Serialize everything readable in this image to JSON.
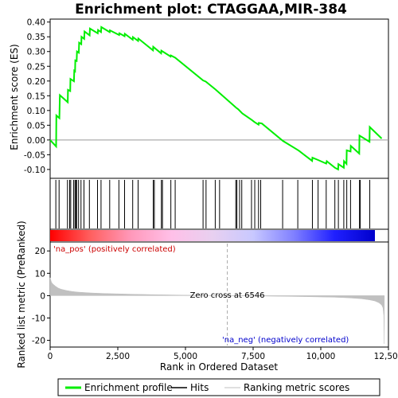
{
  "chart_data": {
    "type": "line",
    "title": "Enrichment plot: CTAGGAA,MIR-384",
    "x_axis": {
      "label": "Rank in Ordered Dataset",
      "range": [
        0,
        12500
      ],
      "ticks": [
        0,
        2500,
        5000,
        7500,
        10000,
        12500
      ],
      "tick_labels": [
        "0",
        "2,500",
        "5,000",
        "7,500",
        "10,000",
        "12,500"
      ]
    },
    "es_panel": {
      "ylabel": "Enrichment score (ES)",
      "ylim": [
        -0.13,
        0.41
      ],
      "ticks": [
        -0.1,
        -0.05,
        0.0,
        0.05,
        0.1,
        0.15,
        0.2,
        0.25,
        0.3,
        0.35,
        0.4
      ],
      "tick_labels": [
        "-0.10",
        "-0.05",
        "0.00",
        "0.05",
        "0.10",
        "0.15",
        "0.20",
        "0.25",
        "0.30",
        "0.35",
        "0.40"
      ],
      "series": [
        {
          "name": "Enrichment profile",
          "color": "#00ee00",
          "points": [
            [
              0,
              0.0
            ],
            [
              220,
              -0.022
            ],
            [
              230,
              0.083
            ],
            [
              340,
              0.074
            ],
            [
              360,
              0.152
            ],
            [
              650,
              0.128
            ],
            [
              660,
              0.17
            ],
            [
              740,
              0.166
            ],
            [
              750,
              0.207
            ],
            [
              880,
              0.199
            ],
            [
              890,
              0.235
            ],
            [
              920,
              0.233
            ],
            [
              930,
              0.27
            ],
            [
              980,
              0.268
            ],
            [
              990,
              0.3
            ],
            [
              1060,
              0.296
            ],
            [
              1070,
              0.33
            ],
            [
              1150,
              0.325
            ],
            [
              1160,
              0.35
            ],
            [
              1260,
              0.343
            ],
            [
              1270,
              0.368
            ],
            [
              1460,
              0.355
            ],
            [
              1470,
              0.378
            ],
            [
              1760,
              0.362
            ],
            [
              1770,
              0.373
            ],
            [
              1880,
              0.366
            ],
            [
              1890,
              0.383
            ],
            [
              2200,
              0.366
            ],
            [
              2210,
              0.372
            ],
            [
              2550,
              0.356
            ],
            [
              2560,
              0.362
            ],
            [
              2750,
              0.352
            ],
            [
              2760,
              0.36
            ],
            [
              3050,
              0.34
            ],
            [
              3060,
              0.349
            ],
            [
              3250,
              0.336
            ],
            [
              3260,
              0.344
            ],
            [
              3800,
              0.304
            ],
            [
              3810,
              0.316
            ],
            [
              4100,
              0.294
            ],
            [
              4110,
              0.303
            ],
            [
              4450,
              0.283
            ],
            [
              4460,
              0.287
            ],
            [
              4620,
              0.279
            ],
            [
              5650,
              0.202
            ],
            [
              5750,
              0.198
            ],
            [
              6100,
              0.172
            ],
            [
              6250,
              0.16
            ],
            [
              6880,
              0.109
            ],
            [
              6950,
              0.104
            ],
            [
              7100,
              0.09
            ],
            [
              7450,
              0.068
            ],
            [
              7550,
              0.061
            ],
            [
              7700,
              0.052
            ],
            [
              7710,
              0.058
            ],
            [
              7820,
              0.056
            ],
            [
              8600,
              -0.003
            ],
            [
              9150,
              -0.034
            ],
            [
              9200,
              -0.037
            ],
            [
              9680,
              -0.071
            ],
            [
              9690,
              -0.06
            ],
            [
              9900,
              -0.068
            ],
            [
              10200,
              -0.08
            ],
            [
              10220,
              -0.072
            ],
            [
              10520,
              -0.094
            ],
            [
              10640,
              -0.1
            ],
            [
              10650,
              -0.082
            ],
            [
              10850,
              -0.094
            ],
            [
              10860,
              -0.072
            ],
            [
              10950,
              -0.081
            ],
            [
              10960,
              -0.035
            ],
            [
              11100,
              -0.039
            ],
            [
              11110,
              -0.02
            ],
            [
              11420,
              -0.046
            ],
            [
              11430,
              0.015
            ],
            [
              11800,
              -0.006
            ],
            [
              11810,
              0.044
            ],
            [
              12250,
              0.005
            ]
          ]
        }
      ]
    },
    "hits": [
      210,
      330,
      640,
      720,
      760,
      870,
      920,
      950,
      980,
      1050,
      1140,
      1250,
      1450,
      1750,
      1880,
      2200,
      2540,
      2750,
      3050,
      3250,
      3810,
      3850,
      4110,
      4150,
      4460,
      4620,
      5650,
      5760,
      6100,
      6260,
      6860,
      6900,
      7000,
      7080,
      7440,
      7560,
      7700,
      7780,
      8590,
      9150,
      9690,
      9900,
      10200,
      10520,
      10650,
      10850,
      10960,
      11100,
      11430,
      11460,
      11810
    ],
    "ranked_metric": {
      "ylabel": "Ranked list metric (PreRanked)",
      "ylim": [
        -23,
        24
      ],
      "ticks": [
        -20,
        -10,
        0,
        10,
        20
      ],
      "tick_labels": [
        "-20",
        "-10",
        "0",
        "10",
        "20"
      ],
      "fill_color": "#c0c0c0",
      "points": [
        [
          0,
          8.0
        ],
        [
          50,
          6.0
        ],
        [
          100,
          5.2
        ],
        [
          200,
          4.2
        ],
        [
          300,
          3.4
        ],
        [
          400,
          2.9
        ],
        [
          600,
          2.3
        ],
        [
          800,
          1.9
        ],
        [
          1000,
          1.6
        ],
        [
          1500,
          1.2
        ],
        [
          2000,
          0.95
        ],
        [
          3000,
          0.65
        ],
        [
          4000,
          0.4
        ],
        [
          5000,
          0.22
        ],
        [
          6000,
          0.08
        ],
        [
          6546,
          0.0
        ],
        [
          7500,
          -0.12
        ],
        [
          8500,
          -0.28
        ],
        [
          9500,
          -0.45
        ],
        [
          10500,
          -0.7
        ],
        [
          11000,
          -0.95
        ],
        [
          11500,
          -1.4
        ],
        [
          11800,
          -1.9
        ],
        [
          12000,
          -2.4
        ],
        [
          12150,
          -3.2
        ],
        [
          12250,
          -4.2
        ],
        [
          12300,
          -5.5
        ],
        [
          12330,
          -9
        ],
        [
          12345,
          -21.5
        ],
        [
          12350,
          0.0
        ]
      ]
    },
    "zero_cross": {
      "rank": 6546,
      "label": "Zero cross at 6546"
    },
    "annotations": {
      "pos_label": "'na_pos' (positively correlated)",
      "neg_label": "'na_neg' (negatively correlated)",
      "pos_color": "#cc0000",
      "neg_color": "#0000cc"
    },
    "legend": {
      "placement": "bottom",
      "entries": [
        {
          "label": "Enrichment profile",
          "color": "#00ee00",
          "kind": "line"
        },
        {
          "label": "Hits",
          "color": "#000000",
          "kind": "line"
        },
        {
          "label": "Ranking metric scores",
          "color": "#c0c0c0",
          "kind": "line"
        }
      ]
    },
    "colorbar": {
      "stops": [
        "#ff0000",
        "#ff6060",
        "#ff99bb",
        "#ffc0e8",
        "#e8d0f0",
        "#c8c8ff",
        "#8080ff",
        "#2020ff",
        "#0000cc"
      ]
    }
  }
}
